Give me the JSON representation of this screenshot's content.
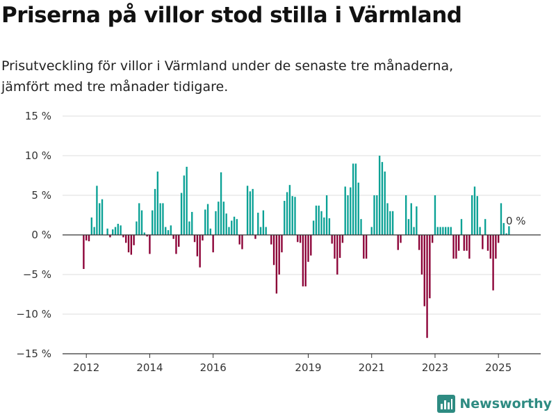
{
  "header": {
    "title": "Priserna på villor stod stilla i Värmland",
    "subtitle_line1": "Prisutveckling för villor i Värmland under de senaste tre månaderna,",
    "subtitle_line2": "jämfört med tre månader tidigare."
  },
  "brand": {
    "name": "Newsworthy"
  },
  "colors": {
    "positive": "#0aa195",
    "negative": "#8b0036",
    "grid": "#dddddd",
    "zero": "#333333",
    "brand": "#2e8b82"
  },
  "chart_data": {
    "type": "bar",
    "title": "Priserna på villor stod stilla i Värmland",
    "ylabel": "",
    "xlabel": "",
    "ylim": [
      -15,
      15
    ],
    "yticks": [
      15,
      10,
      5,
      0,
      -5,
      -10,
      -15
    ],
    "ytick_labels": [
      "15 %",
      "10 %",
      "5 %",
      "0 %",
      "−5 %",
      "−10 %",
      "−15 %"
    ],
    "xticks": [
      "2012",
      "2014",
      "2016",
      "2019",
      "2021",
      "2023",
      "2025"
    ],
    "xlim": [
      "2011-04",
      "2026-05"
    ],
    "last_value_label": "0 %",
    "grid": true,
    "x": [
      "2011-12",
      "2012-01",
      "2012-02",
      "2012-03",
      "2012-04",
      "2012-05",
      "2012-06",
      "2012-07",
      "2012-08",
      "2012-09",
      "2012-10",
      "2012-11",
      "2012-12",
      "2013-01",
      "2013-02",
      "2013-03",
      "2013-04",
      "2013-05",
      "2013-06",
      "2013-07",
      "2013-08",
      "2013-09",
      "2013-10",
      "2013-11",
      "2013-12",
      "2014-01",
      "2014-02",
      "2014-03",
      "2014-04",
      "2014-05",
      "2014-06",
      "2014-07",
      "2014-08",
      "2014-09",
      "2014-10",
      "2014-11",
      "2014-12",
      "2015-01",
      "2015-02",
      "2015-03",
      "2015-04",
      "2015-05",
      "2015-06",
      "2015-07",
      "2015-08",
      "2015-09",
      "2015-10",
      "2015-11",
      "2015-12",
      "2016-01",
      "2016-02",
      "2016-03",
      "2016-04",
      "2016-05",
      "2016-06",
      "2016-07",
      "2016-08",
      "2016-09",
      "2016-10",
      "2016-11",
      "2016-12",
      "2017-01",
      "2017-02",
      "2017-03",
      "2017-04",
      "2017-05",
      "2017-06",
      "2017-07",
      "2017-08",
      "2017-09",
      "2017-10",
      "2017-11",
      "2017-12",
      "2018-01",
      "2018-02",
      "2018-03",
      "2018-04",
      "2018-05",
      "2018-06",
      "2018-07",
      "2018-08",
      "2018-09",
      "2018-10",
      "2018-11",
      "2018-12",
      "2019-01",
      "2019-02",
      "2019-03",
      "2019-04",
      "2019-05",
      "2019-06",
      "2019-07",
      "2019-08",
      "2019-09",
      "2019-10",
      "2019-11",
      "2019-12",
      "2020-01",
      "2020-02",
      "2020-03",
      "2020-04",
      "2020-05",
      "2020-06",
      "2020-07",
      "2020-08",
      "2020-09",
      "2020-10",
      "2020-11",
      "2020-12",
      "2021-01",
      "2021-02",
      "2021-03",
      "2021-04",
      "2021-05",
      "2021-06",
      "2021-07",
      "2021-08",
      "2021-09",
      "2021-10",
      "2021-11",
      "2021-12",
      "2022-01",
      "2022-02",
      "2022-03",
      "2022-04",
      "2022-05",
      "2022-06",
      "2022-07",
      "2022-08",
      "2022-09",
      "2022-10",
      "2022-11",
      "2022-12",
      "2023-01",
      "2023-02",
      "2023-03",
      "2023-04",
      "2023-05",
      "2023-06",
      "2023-07",
      "2023-08",
      "2023-09",
      "2023-10",
      "2023-11",
      "2023-12",
      "2024-01",
      "2024-02",
      "2024-03",
      "2024-04",
      "2024-05",
      "2024-06",
      "2024-07",
      "2024-08",
      "2024-09",
      "2024-10",
      "2024-11",
      "2024-12",
      "2025-01",
      "2025-02",
      "2025-03",
      "2025-04",
      "2025-05",
      "2025-06",
      "2025-07"
    ],
    "values": [
      -4.3,
      -0.7,
      -0.8,
      2.2,
      1.0,
      6.2,
      4.0,
      4.5,
      null,
      0.8,
      -0.3,
      0.7,
      1.0,
      1.4,
      1.2,
      -0.3,
      -1.0,
      -2.2,
      -2.5,
      -1.3,
      1.7,
      4.0,
      3.1,
      0.3,
      -0.2,
      -2.4,
      3.1,
      5.8,
      8.0,
      4.0,
      4.0,
      1.0,
      0.6,
      1.2,
      -0.5,
      -2.4,
      -1.5,
      5.3,
      7.5,
      8.6,
      1.7,
      2.9,
      -0.9,
      -2.7,
      -4.1,
      -0.7,
      3.2,
      3.9,
      0.8,
      -2.2,
      3.0,
      4.2,
      7.9,
      4.2,
      2.7,
      1.0,
      1.8,
      2.3,
      2.0,
      -1.2,
      -1.8,
      null,
      6.2,
      5.5,
      5.8,
      -0.5,
      2.8,
      1.0,
      3.1,
      1.0,
      null,
      -1.2,
      -3.8,
      -7.4,
      -5.0,
      -2.2,
      4.3,
      5.4,
      6.3,
      4.9,
      4.8,
      -0.9,
      -1.0,
      -6.5,
      -6.5,
      -3.4,
      -2.6,
      1.8,
      3.7,
      3.7,
      3.0,
      2.2,
      5.0,
      2.1,
      -1.1,
      -3.0,
      -5.0,
      -2.9,
      -1.0,
      6.1,
      5.0,
      6.0,
      9.0,
      9.0,
      6.6,
      2.0,
      -3.0,
      -3.0,
      null,
      1.0,
      5.0,
      5.0,
      10.0,
      9.2,
      8.0,
      4.0,
      3.0,
      3.0,
      null,
      -1.9,
      -1.0,
      null,
      5.0,
      2.0,
      4.0,
      1.0,
      3.6,
      -1.9,
      -5.0,
      -9.0,
      -13.0,
      -8.0,
      -1.0,
      5.0,
      1.0,
      1.0,
      1.0,
      1.0,
      1.0,
      1.0,
      -3.0,
      -3.0,
      -2.0,
      2.0,
      -2.0,
      -2.0,
      -3.0,
      5.0,
      6.1,
      4.9,
      1.0,
      -1.8,
      2.0,
      -2.0,
      -3.0,
      -7.0,
      -3.0,
      -1.0,
      4.0,
      1.5,
      0.2,
      1.1,
      null,
      0.0
    ]
  }
}
